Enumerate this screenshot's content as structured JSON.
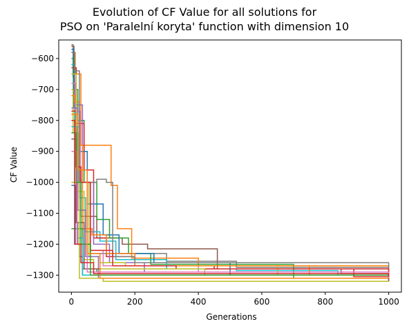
{
  "chart_data": {
    "type": "line",
    "title_line1": "Evolution of CF Value for all solutions for",
    "title_line2": "PSO on 'Paralelní koryta' function with dimension 10",
    "xlabel": "Generations",
    "ylabel": "CF Value",
    "xlim": [
      -40,
      1040
    ],
    "ylim": [
      -1355,
      -540
    ],
    "x_ticks": [
      0,
      200,
      400,
      600,
      800,
      1000
    ],
    "x_tick_labels": [
      "0",
      "200",
      "400",
      "600",
      "800",
      "1000"
    ],
    "y_ticks": [
      -1300,
      -1200,
      -1100,
      -1000,
      -900,
      -800,
      -700,
      -600
    ],
    "y_tick_labels": [
      "−1300",
      "−1200",
      "−1100",
      "−1000",
      "−900",
      "−800",
      "−700",
      "−600"
    ],
    "grid": false,
    "legend": "none",
    "colors": [
      "#1f77b4",
      "#ff7f0e",
      "#2ca02c",
      "#d62728",
      "#9467bd",
      "#8c564b",
      "#e377c2",
      "#7f7f7f",
      "#bcbd22",
      "#17becf"
    ],
    "series": [
      {
        "color_index": 7,
        "steps": [
          [
            0,
            -555
          ],
          [
            5,
            -660
          ],
          [
            10,
            -1000
          ],
          [
            15,
            -1130
          ],
          [
            20,
            -1200
          ],
          [
            60,
            -1230
          ],
          [
            300,
            -1255
          ],
          [
            520,
            -1275
          ],
          [
            1000,
            -1275
          ]
        ]
      },
      {
        "color_index": 5,
        "steps": [
          [
            0,
            -560
          ],
          [
            8,
            -700
          ],
          [
            15,
            -990
          ],
          [
            30,
            -1110
          ],
          [
            80,
            -1180
          ],
          [
            160,
            -1200
          ],
          [
            240,
            -1215
          ],
          [
            460,
            -1280
          ],
          [
            850,
            -1295
          ],
          [
            1000,
            -1295
          ]
        ]
      },
      {
        "color_index": 1,
        "steps": [
          [
            0,
            -580
          ],
          [
            12,
            -650
          ],
          [
            30,
            -880
          ],
          [
            55,
            -880
          ],
          [
            125,
            -1010
          ],
          [
            145,
            -1150
          ],
          [
            190,
            -1245
          ],
          [
            400,
            -1270
          ],
          [
            1000,
            -1300
          ]
        ]
      },
      {
        "color_index": 2,
        "steps": [
          [
            0,
            -600
          ],
          [
            6,
            -700
          ],
          [
            20,
            -800
          ],
          [
            40,
            -1000
          ],
          [
            80,
            -1120
          ],
          [
            120,
            -1180
          ],
          [
            180,
            -1230
          ],
          [
            250,
            -1265
          ],
          [
            700,
            -1310
          ],
          [
            1000,
            -1310
          ]
        ]
      },
      {
        "color_index": 9,
        "steps": [
          [
            0,
            -620
          ],
          [
            10,
            -820
          ],
          [
            25,
            -1050
          ],
          [
            45,
            -1160
          ],
          [
            90,
            -1190
          ],
          [
            140,
            -1250
          ],
          [
            300,
            -1280
          ],
          [
            520,
            -1285
          ],
          [
            840,
            -1300
          ],
          [
            1000,
            -1300
          ]
        ]
      },
      {
        "color_index": 3,
        "steps": [
          [
            0,
            -630
          ],
          [
            15,
            -810
          ],
          [
            40,
            -960
          ],
          [
            70,
            -1180
          ],
          [
            110,
            -1240
          ],
          [
            200,
            -1270
          ],
          [
            450,
            -1280
          ],
          [
            890,
            -1305
          ],
          [
            1000,
            -1305
          ]
        ]
      },
      {
        "color_index": 0,
        "steps": [
          [
            0,
            -570
          ],
          [
            8,
            -760
          ],
          [
            20,
            -900
          ],
          [
            50,
            -1070
          ],
          [
            100,
            -1170
          ],
          [
            150,
            -1230
          ],
          [
            260,
            -1260
          ],
          [
            500,
            -1300
          ],
          [
            1000,
            -1320
          ]
        ]
      },
      {
        "color_index": 4,
        "steps": [
          [
            0,
            -650
          ],
          [
            10,
            -750
          ],
          [
            35,
            -1000
          ],
          [
            70,
            -1200
          ],
          [
            120,
            -1260
          ],
          [
            230,
            -1290
          ],
          [
            1000,
            -1300
          ]
        ]
      },
      {
        "color_index": 6,
        "steps": [
          [
            0,
            -680
          ],
          [
            12,
            -770
          ],
          [
            28,
            -1000
          ],
          [
            60,
            -1220
          ],
          [
            100,
            -1270
          ],
          [
            400,
            -1290
          ],
          [
            1000,
            -1295
          ]
        ]
      },
      {
        "color_index": 8,
        "steps": [
          [
            0,
            -700
          ],
          [
            5,
            -840
          ],
          [
            22,
            -1000
          ],
          [
            55,
            -1240
          ],
          [
            90,
            -1260
          ],
          [
            170,
            -1270
          ],
          [
            650,
            -1300
          ],
          [
            1000,
            -1300
          ]
        ]
      },
      {
        "color_index": 1,
        "steps": [
          [
            0,
            -720
          ],
          [
            10,
            -740
          ],
          [
            25,
            -880
          ],
          [
            35,
            -1150
          ],
          [
            65,
            -1170
          ],
          [
            110,
            -1230
          ],
          [
            200,
            -1270
          ],
          [
            750,
            -1300
          ],
          [
            1000,
            -1305
          ]
        ]
      },
      {
        "color_index": 2,
        "steps": [
          [
            0,
            -1150
          ],
          [
            20,
            -1150
          ],
          [
            35,
            -1280
          ],
          [
            80,
            -1290
          ],
          [
            500,
            -1300
          ],
          [
            1000,
            -1300
          ]
        ]
      },
      {
        "color_index": 7,
        "steps": [
          [
            0,
            -580
          ],
          [
            10,
            -640
          ],
          [
            25,
            -1000
          ],
          [
            80,
            -990
          ],
          [
            110,
            -1000
          ],
          [
            130,
            -1240
          ],
          [
            200,
            -1260
          ],
          [
            1000,
            -1310
          ]
        ]
      },
      {
        "color_index": 3,
        "steps": [
          [
            0,
            -770
          ],
          [
            14,
            -950
          ],
          [
            30,
            -1000
          ],
          [
            60,
            -1220
          ],
          [
            130,
            -1270
          ],
          [
            330,
            -1280
          ],
          [
            1000,
            -1315
          ]
        ]
      },
      {
        "color_index": 0,
        "steps": [
          [
            0,
            -1010
          ],
          [
            12,
            -1200
          ],
          [
            25,
            -1240
          ],
          [
            35,
            -1300
          ],
          [
            1000,
            -1305
          ]
        ]
      },
      {
        "color_index": 8,
        "steps": [
          [
            0,
            -650
          ],
          [
            15,
            -1030
          ],
          [
            40,
            -1250
          ],
          [
            70,
            -1280
          ],
          [
            420,
            -1300
          ],
          [
            1000,
            -1300
          ]
        ]
      },
      {
        "color_index": 9,
        "steps": [
          [
            0,
            -820
          ],
          [
            18,
            -1180
          ],
          [
            35,
            -1300
          ],
          [
            1000,
            -1315
          ]
        ]
      },
      {
        "color_index": 4,
        "steps": [
          [
            0,
            -760
          ],
          [
            20,
            -1090
          ],
          [
            45,
            -1240
          ],
          [
            85,
            -1310
          ],
          [
            1000,
            -1310
          ]
        ]
      },
      {
        "color_index": 5,
        "steps": [
          [
            0,
            -860
          ],
          [
            15,
            -1130
          ],
          [
            40,
            -1280
          ],
          [
            90,
            -1300
          ],
          [
            1000,
            -1320
          ]
        ]
      },
      {
        "color_index": 6,
        "steps": [
          [
            0,
            -900
          ],
          [
            18,
            -1200
          ],
          [
            50,
            -1290
          ],
          [
            1000,
            -1310
          ]
        ]
      },
      {
        "color_index": 8,
        "steps": [
          [
            0,
            -1000
          ],
          [
            25,
            -1310
          ],
          [
            100,
            -1320
          ],
          [
            1000,
            -1320
          ]
        ]
      },
      {
        "color_index": 2,
        "steps": [
          [
            0,
            -840
          ],
          [
            15,
            -1000
          ],
          [
            30,
            -1200
          ],
          [
            60,
            -1300
          ],
          [
            1000,
            -1300
          ]
        ]
      },
      {
        "color_index": 1,
        "steps": [
          [
            0,
            -780
          ],
          [
            20,
            -960
          ],
          [
            50,
            -1230
          ],
          [
            90,
            -1310
          ],
          [
            1000,
            -1310
          ]
        ]
      },
      {
        "color_index": 3,
        "steps": [
          [
            0,
            -800
          ],
          [
            10,
            -1200
          ],
          [
            30,
            -1260
          ],
          [
            70,
            -1295
          ],
          [
            1000,
            -1305
          ]
        ]
      }
    ]
  }
}
